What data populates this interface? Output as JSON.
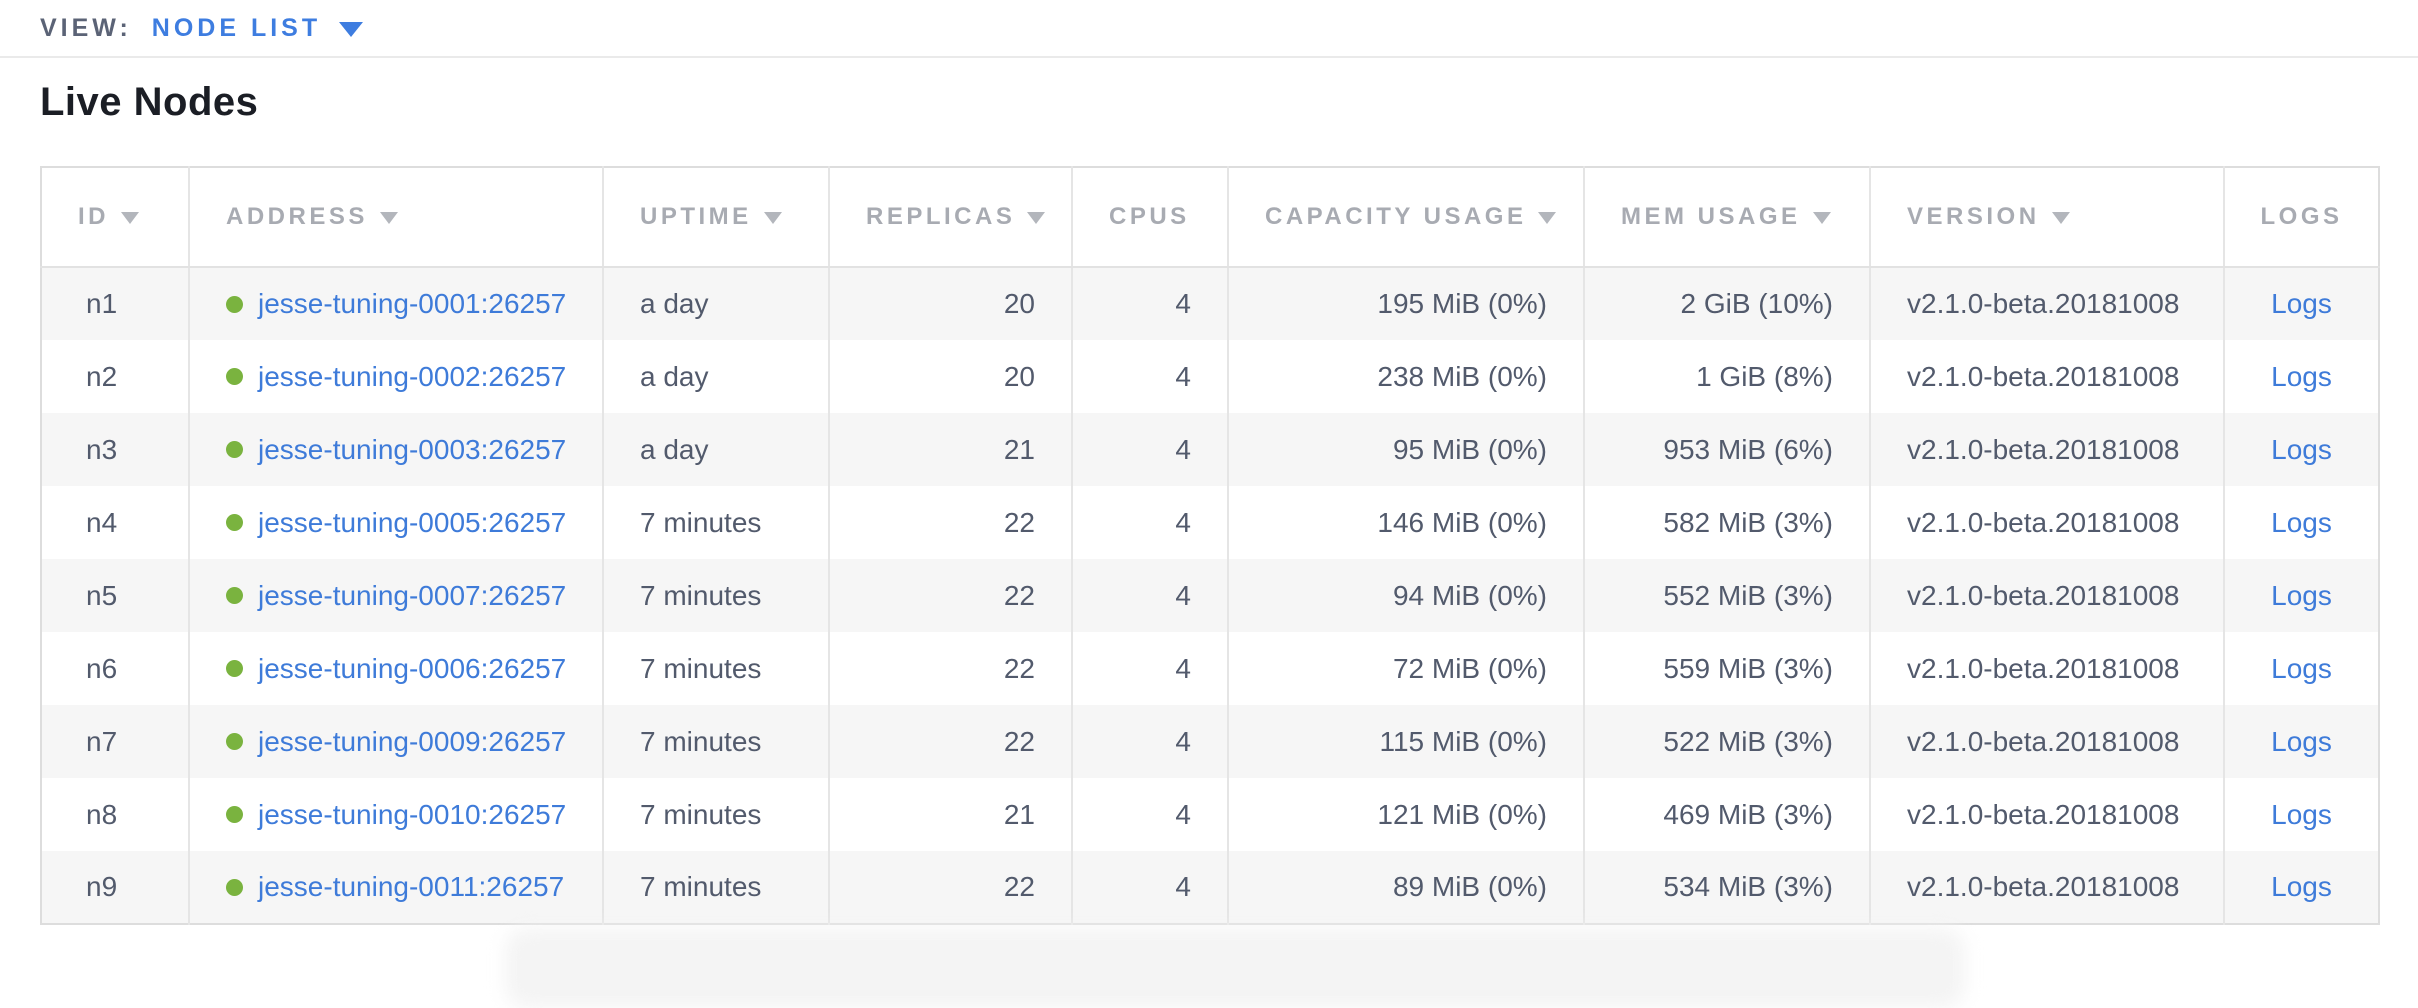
{
  "view_bar": {
    "label": "VIEW:",
    "selected": "NODE LIST",
    "dropdown_icon": "caret-down-icon"
  },
  "page": {
    "title": "Live Nodes"
  },
  "colors": {
    "accent_blue": "#3e7de0",
    "link_blue": "#3e7bd9",
    "live_status_green": "#7ab33f",
    "header_text_gray": "#a8abb2",
    "body_text_slate": "#525a6c",
    "row_alt_gray": "#f6f6f6"
  },
  "table": {
    "columns": [
      {
        "id": "id",
        "label": "ID",
        "sortable": true,
        "align": "left",
        "cell_align": "left"
      },
      {
        "id": "address",
        "label": "ADDRESS",
        "sortable": true,
        "align": "left",
        "cell_align": "left"
      },
      {
        "id": "uptime",
        "label": "UPTIME",
        "sortable": true,
        "align": "left",
        "cell_align": "left"
      },
      {
        "id": "replicas",
        "label": "REPLICAS",
        "sortable": true,
        "align": "left",
        "cell_align": "right"
      },
      {
        "id": "cpus",
        "label": "CPUS",
        "sortable": false,
        "align": "left",
        "cell_align": "right"
      },
      {
        "id": "capacity",
        "label": "CAPACITY USAGE",
        "sortable": true,
        "align": "left",
        "cell_align": "right"
      },
      {
        "id": "mem",
        "label": "MEM USAGE",
        "sortable": true,
        "align": "left",
        "cell_align": "right"
      },
      {
        "id": "version",
        "label": "VERSION",
        "sortable": true,
        "align": "left",
        "cell_align": "left"
      },
      {
        "id": "logs",
        "label": "LOGS",
        "sortable": false,
        "align": "center",
        "cell_align": "center"
      }
    ],
    "rows": [
      {
        "id": "n1",
        "status": "live",
        "address": "jesse-tuning-0001:26257",
        "uptime": "a day",
        "replicas": "20",
        "cpus": "4",
        "capacity": "195 MiB (0%)",
        "mem": "2 GiB (10%)",
        "version": "v2.1.0-beta.20181008",
        "logs": "Logs"
      },
      {
        "id": "n2",
        "status": "live",
        "address": "jesse-tuning-0002:26257",
        "uptime": "a day",
        "replicas": "20",
        "cpus": "4",
        "capacity": "238 MiB (0%)",
        "mem": "1 GiB (8%)",
        "version": "v2.1.0-beta.20181008",
        "logs": "Logs"
      },
      {
        "id": "n3",
        "status": "live",
        "address": "jesse-tuning-0003:26257",
        "uptime": "a day",
        "replicas": "21",
        "cpus": "4",
        "capacity": "95 MiB (0%)",
        "mem": "953 MiB (6%)",
        "version": "v2.1.0-beta.20181008",
        "logs": "Logs"
      },
      {
        "id": "n4",
        "status": "live",
        "address": "jesse-tuning-0005:26257",
        "uptime": "7 minutes",
        "replicas": "22",
        "cpus": "4",
        "capacity": "146 MiB (0%)",
        "mem": "582 MiB (3%)",
        "version": "v2.1.0-beta.20181008",
        "logs": "Logs"
      },
      {
        "id": "n5",
        "status": "live",
        "address": "jesse-tuning-0007:26257",
        "uptime": "7 minutes",
        "replicas": "22",
        "cpus": "4",
        "capacity": "94 MiB (0%)",
        "mem": "552 MiB (3%)",
        "version": "v2.1.0-beta.20181008",
        "logs": "Logs"
      },
      {
        "id": "n6",
        "status": "live",
        "address": "jesse-tuning-0006:26257",
        "uptime": "7 minutes",
        "replicas": "22",
        "cpus": "4",
        "capacity": "72 MiB (0%)",
        "mem": "559 MiB (3%)",
        "version": "v2.1.0-beta.20181008",
        "logs": "Logs"
      },
      {
        "id": "n7",
        "status": "live",
        "address": "jesse-tuning-0009:26257",
        "uptime": "7 minutes",
        "replicas": "22",
        "cpus": "4",
        "capacity": "115 MiB (0%)",
        "mem": "522 MiB (3%)",
        "version": "v2.1.0-beta.20181008",
        "logs": "Logs"
      },
      {
        "id": "n8",
        "status": "live",
        "address": "jesse-tuning-0010:26257",
        "uptime": "7 minutes",
        "replicas": "21",
        "cpus": "4",
        "capacity": "121 MiB (0%)",
        "mem": "469 MiB (3%)",
        "version": "v2.1.0-beta.20181008",
        "logs": "Logs"
      },
      {
        "id": "n9",
        "status": "live",
        "address": "jesse-tuning-0011:26257",
        "uptime": "7 minutes",
        "replicas": "22",
        "cpus": "4",
        "capacity": "89 MiB (0%)",
        "mem": "534 MiB (3%)",
        "version": "v2.1.0-beta.20181008",
        "logs": "Logs"
      }
    ]
  }
}
